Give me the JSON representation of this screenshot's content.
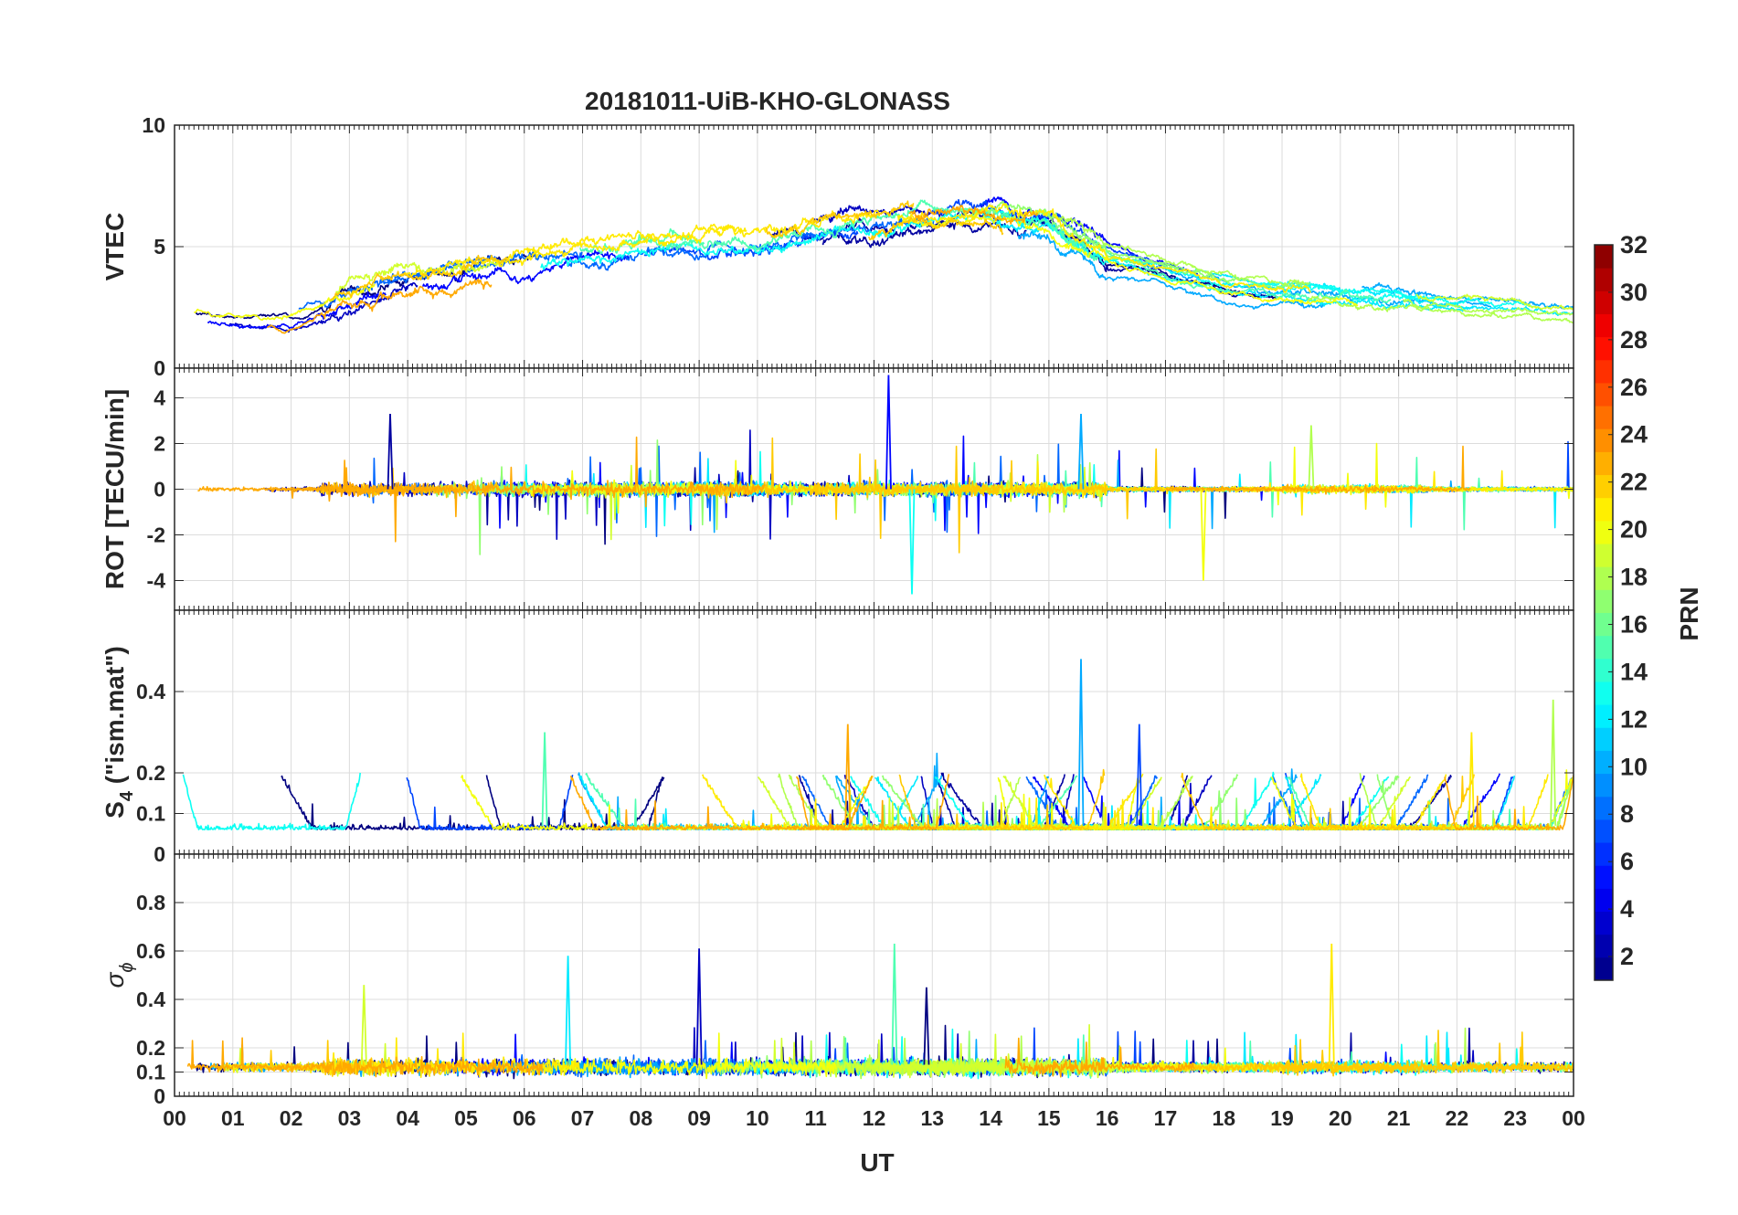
{
  "chart_data": {
    "type": "line",
    "title": "20181011-UiB-KHO-GLONASS",
    "xlabel": "UT",
    "x_tick_labels": [
      "00",
      "01",
      "02",
      "03",
      "04",
      "05",
      "06",
      "07",
      "08",
      "09",
      "10",
      "11",
      "12",
      "13",
      "14",
      "15",
      "16",
      "17",
      "18",
      "19",
      "20",
      "21",
      "22",
      "23",
      "00"
    ],
    "xlim_hours": [
      0,
      24
    ],
    "grid": true,
    "panels": [
      {
        "name": "vtec",
        "ylabel": "VTEC",
        "ylim": [
          0,
          10
        ],
        "yticks": [
          0,
          5,
          10
        ],
        "yticklabels": [
          "0",
          "5",
          "10"
        ],
        "trend_hours": [
          0,
          2,
          3,
          4,
          6,
          8,
          10,
          12,
          13,
          14,
          15,
          16,
          18,
          20,
          22,
          24
        ],
        "trend_values": [
          2.2,
          2.0,
          3.0,
          3.5,
          4.3,
          5.0,
          5.3,
          6.0,
          6.3,
          6.4,
          6.0,
          4.6,
          3.4,
          3.0,
          2.7,
          2.3
        ],
        "spread": 0.9
      },
      {
        "name": "rot",
        "ylabel": "ROT [TECU/min]",
        "ylim": [
          -5.3,
          5.3
        ],
        "yticks": [
          -4,
          -2,
          0,
          2,
          4
        ],
        "yticklabels": [
          "-4",
          "-2",
          "0",
          "2",
          "4"
        ],
        "peaks": [
          {
            "hour": 12.25,
            "value": 5.0
          },
          {
            "hour": 12.65,
            "value": -4.6
          },
          {
            "hour": 17.65,
            "value": -4.0
          },
          {
            "hour": 3.7,
            "value": 3.3
          },
          {
            "hour": 15.55,
            "value": 3.3
          },
          {
            "hour": 19.5,
            "value": 2.8
          }
        ]
      },
      {
        "name": "s4",
        "ylabel": "S",
        "ylabel_sub": "4",
        "ylabel_rest": " (\"ism.mat\")",
        "ylim": [
          0,
          0.6
        ],
        "yticks": [
          0,
          0.1,
          0.2,
          0.4
        ],
        "yticklabels": [
          "0",
          "0.1",
          "0.2",
          "0.4"
        ],
        "peaks": [
          {
            "hour": 15.55,
            "value": 0.48
          },
          {
            "hour": 23.65,
            "value": 0.38
          },
          {
            "hour": 11.55,
            "value": 0.32
          },
          {
            "hour": 16.55,
            "value": 0.32
          },
          {
            "hour": 6.35,
            "value": 0.3
          },
          {
            "hour": 22.25,
            "value": 0.3
          }
        ]
      },
      {
        "name": "sigma-phi",
        "ylabel": "σ",
        "ylabel_sub": "ϕ",
        "ylim": [
          0,
          1
        ],
        "yticks": [
          0,
          0.1,
          0.2,
          0.4,
          0.6,
          0.8
        ],
        "yticklabels": [
          "0",
          "0.1",
          "0.2",
          "0.4",
          "0.6",
          "0.8"
        ],
        "peaks": [
          {
            "hour": 12.35,
            "value": 0.63
          },
          {
            "hour": 19.85,
            "value": 0.63
          },
          {
            "hour": 9.0,
            "value": 0.61
          },
          {
            "hour": 6.75,
            "value": 0.58
          },
          {
            "hour": 3.25,
            "value": 0.46
          },
          {
            "hour": 12.9,
            "value": 0.45
          }
        ]
      }
    ],
    "colorbar": {
      "label": "PRN",
      "min": 1,
      "max": 32,
      "ticks": [
        2,
        4,
        6,
        8,
        10,
        12,
        14,
        16,
        18,
        20,
        22,
        24,
        26,
        28,
        30,
        32
      ],
      "colormap": "jet"
    },
    "series_prn": [
      1,
      2,
      3,
      5,
      7,
      8,
      10,
      12,
      13,
      15,
      17,
      18,
      19,
      20,
      21,
      22,
      23
    ]
  }
}
